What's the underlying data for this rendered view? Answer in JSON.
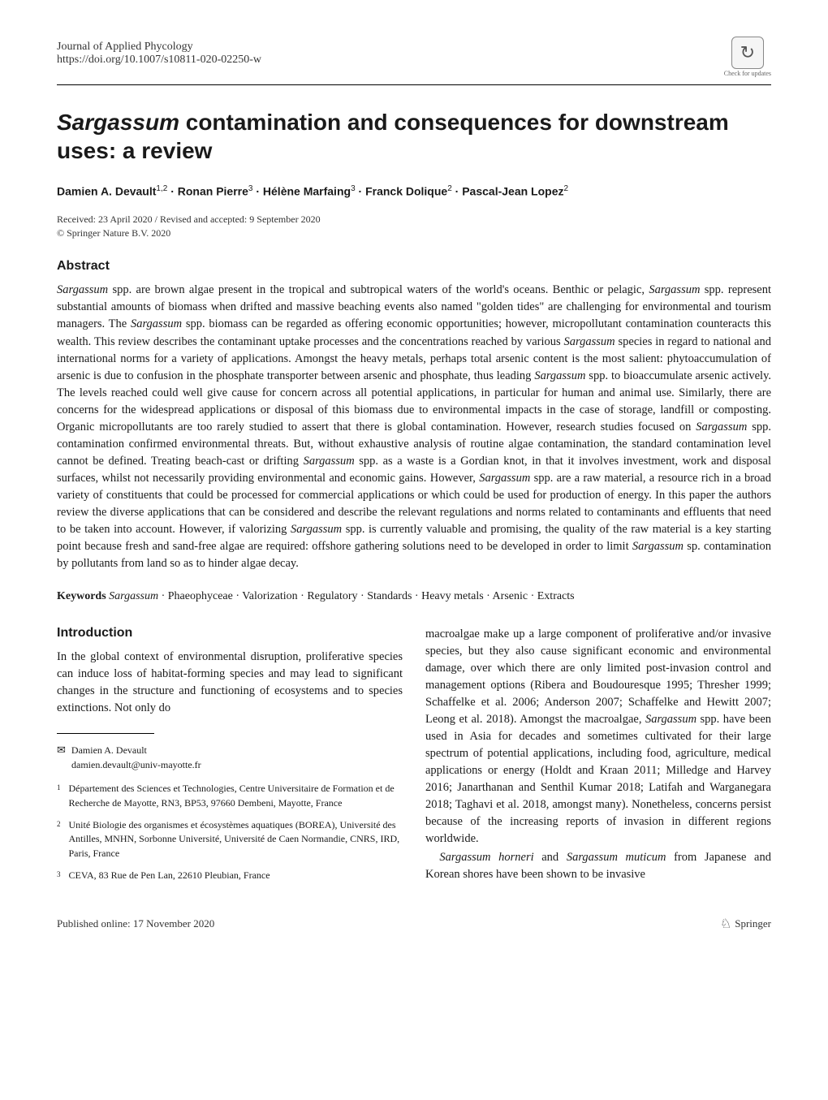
{
  "header": {
    "journal": "Journal of Applied Phycology",
    "doi": "https://doi.org/10.1007/s10811-020-02250-w",
    "check_updates": "Check for updates"
  },
  "article": {
    "title_html": "<em>Sargassum</em> contamination and consequences for downstream uses: a review",
    "authors_html": "Damien A. Devault<sup>1,2</sup> · Ronan Pierre<sup>3</sup> · Hélène Marfaing<sup>3</sup> · Franck Dolique<sup>2</sup> · Pascal-Jean Lopez<sup>2</sup>",
    "dates": "Received: 23 April 2020 / Revised and accepted: 9 September 2020",
    "copyright": "© Springer Nature B.V. 2020"
  },
  "abstract": {
    "heading": "Abstract",
    "text_html": "<em>Sargassum</em> spp. are brown algae present in the tropical and subtropical waters of the world's oceans. Benthic or pelagic, <em>Sargassum</em> spp. represent substantial amounts of biomass when drifted and massive beaching events also named \"golden tides\" are challenging for environmental and tourism managers. The <em>Sargassum</em> spp. biomass can be regarded as offering economic opportunities; however, micropollutant contamination counteracts this wealth. This review describes the contaminant uptake processes and the concentrations reached by various <em>Sargassum</em> species in regard to national and international norms for a variety of applications. Amongst the heavy metals, perhaps total arsenic content is the most salient: phytoaccumulation of arsenic is due to confusion in the phosphate transporter between arsenic and phosphate, thus leading <em>Sargassum</em> spp. to bioaccumulate arsenic actively. The levels reached could well give cause for concern across all potential applications, in particular for human and animal use. Similarly, there are concerns for the widespread applications or disposal of this biomass due to environmental impacts in the case of storage, landfill or composting. Organic micropollutants are too rarely studied to assert that there is global contamination. However, research studies focused on <em>Sargassum</em> spp. contamination confirmed environmental threats. But, without exhaustive analysis of routine algae contamination, the standard contamination level cannot be defined. Treating beach-cast or drifting <em>Sargassum</em> spp. as a waste is a Gordian knot, in that it involves investment, work and disposal surfaces, whilst not necessarily providing environmental and economic gains. However, <em>Sargassum</em> spp. are a raw material, a resource rich in a broad variety of constituents that could be processed for commercial applications or which could be used for production of energy. In this paper the authors review the diverse applications that can be considered and describe the relevant regulations and norms related to contaminants and effluents that need to be taken into account. However, if valorizing <em>Sargassum</em> spp. is currently valuable and promising, the quality of the raw material is a key starting point because fresh and sand-free algae are required: offshore gathering solutions need to be developed in order to limit <em>Sargassum</em> sp. contamination by pollutants from land so as to hinder algae decay."
  },
  "keywords": {
    "label": "Keywords",
    "text_html": "<em>Sargassum</em> · Phaeophyceae · Valorization · Regulatory · Standards · Heavy metals · Arsenic · Extracts"
  },
  "introduction": {
    "heading": "Introduction",
    "left_html": "In the global context of environmental disruption, proliferative species can induce loss of habitat-forming species and may lead to significant changes in the structure and functioning of ecosystems and to species extinctions. Not only do",
    "right_html": "macroalgae make up a large component of proliferative and/or invasive species, but they also cause significant economic and environmental damage, over which there are only limited post-invasion control and management options (Ribera and Boudouresque 1995; Thresher 1999; Schaffelke et al. 2006; Anderson 2007; Schaffelke and Hewitt 2007; Leong et al. 2018). Amongst the macroalgae, <em>Sargassum</em> spp. have been used in Asia for decades and sometimes cultivated for their large spectrum of potential applications, including food, agriculture, medical applications or energy (Holdt and Kraan 2011; Milledge and Harvey 2016; Janarthanan and Senthil Kumar 2018; Latifah and Warganegara 2018; Taghavi et al. 2018, amongst many). Nonetheless, concerns persist because of the increasing reports of invasion in different regions worldwide.",
    "right_para2_html": "<em>Sargassum horneri</em> and <em>Sargassum muticum</em> from Japanese and Korean shores have been shown to be invasive"
  },
  "correspondence": {
    "name": "Damien A. Devault",
    "email": "damien.devault@univ-mayotte.fr"
  },
  "affiliations": [
    {
      "num": "1",
      "text": "Département des Sciences et Technologies, Centre Universitaire de Formation et de Recherche de Mayotte, RN3, BP53, 97660 Dembeni, Mayotte, France"
    },
    {
      "num": "2",
      "text": "Unité Biologie des organismes et écosystèmes aquatiques (BOREA), Université des Antilles, MNHN, Sorbonne Université, Université de Caen Normandie, CNRS, IRD, Paris, France"
    },
    {
      "num": "3",
      "text": "CEVA, 83 Rue de Pen Lan, 22610 Pleubian, France"
    }
  ],
  "footer": {
    "published": "Published online: 17 November 2020",
    "publisher": "Springer"
  },
  "colors": {
    "text": "#1a1a1a",
    "background": "#ffffff",
    "divider": "#000000"
  },
  "fonts": {
    "body_family": "Georgia, Times New Roman, serif",
    "heading_family": "Arial, Helvetica, sans-serif",
    "title_size_pt": 21,
    "body_size_pt": 11,
    "footnote_size_pt": 9
  }
}
